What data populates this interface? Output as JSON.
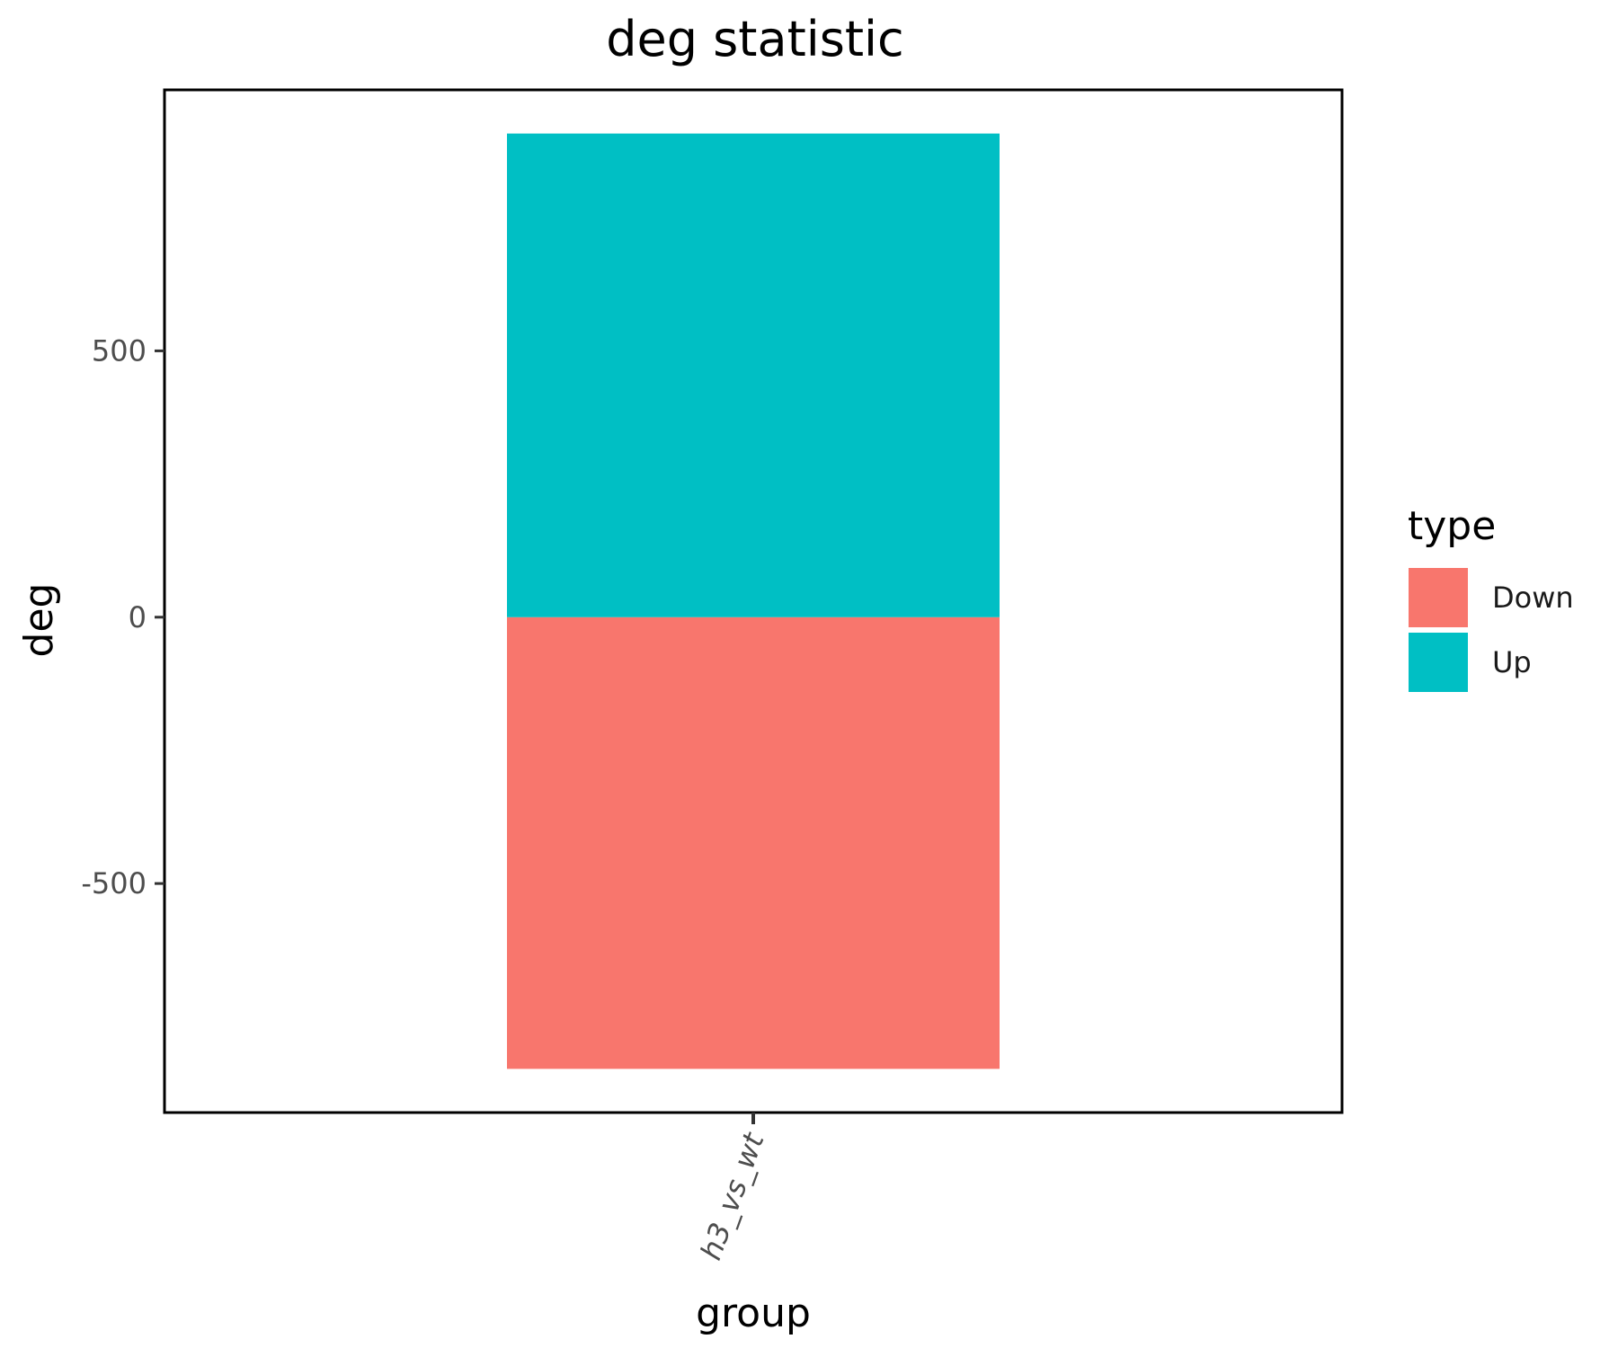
{
  "chart_data": {
    "type": "bar",
    "stacked": true,
    "title": "deg statistic",
    "xlabel": "group",
    "ylabel": "deg",
    "categories": [
      "h3_vs_wt"
    ],
    "series": [
      {
        "name": "Down",
        "values": [
          -848
        ],
        "color": "#F8766D"
      },
      {
        "name": "Up",
        "values": [
          908
        ],
        "color": "#00BFC4"
      }
    ],
    "ylim": [
      -930,
      990
    ],
    "yticks": [
      -500,
      0,
      500
    ],
    "ytick_labels": [
      "-500",
      "0",
      "500"
    ],
    "xtick_rotation": -70,
    "legend": {
      "title": "type",
      "position": "right",
      "entries": [
        "Down",
        "Up"
      ]
    },
    "grid": false,
    "panel_border": true
  }
}
